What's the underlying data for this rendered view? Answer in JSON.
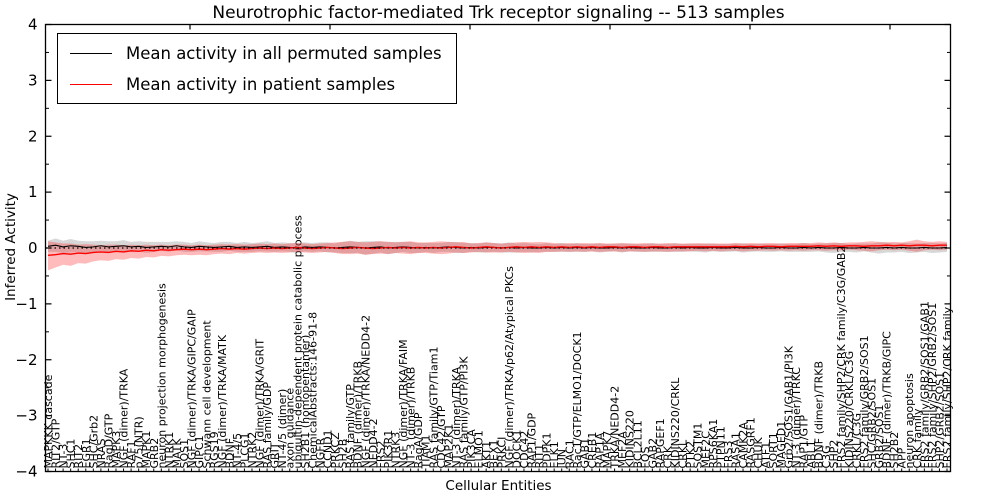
{
  "title": "Neurotrophic factor-mediated Trk receptor signaling -- 513 samples",
  "axes": {
    "x_label": "Cellular Entities",
    "y_label": "Inferred Activity",
    "ylim": [
      -4,
      4
    ],
    "y_ticks": [
      {
        "label": "4",
        "v": 4
      },
      {
        "label": "3",
        "v": 3
      },
      {
        "label": "2",
        "v": 2
      },
      {
        "label": "1",
        "v": 1
      },
      {
        "label": "0",
        "v": 0
      },
      {
        "label": "−1",
        "v": -1
      },
      {
        "label": "−2",
        "v": -2
      },
      {
        "label": "−3",
        "v": -3
      },
      {
        "label": "−4",
        "v": -4
      }
    ],
    "y_minor_step": 0.5
  },
  "colors": {
    "permuted_line": "#000000",
    "patient_line": "#ff0000",
    "permuted_band": "rgba(110,110,110,0.28)",
    "patient_band": "rgba(255,30,30,0.30)",
    "zero_line": "#000000",
    "frame": "#000000"
  },
  "chart_data": {
    "type": "line",
    "title": "Neurotrophic factor-mediated Trk receptor signaling -- 513 samples",
    "xlabel": "Cellular Entities",
    "ylabel": "Inferred Activity",
    "ylim": [
      -4,
      4
    ],
    "grid": false,
    "legend_position": "upper left",
    "zero_reference_line": 0,
    "categories": [
      "MAPKKK cascade",
      "RIT2/GTP",
      "NT-3",
      "SHC1",
      "RIT2",
      "EGR1",
      "SHC/Grb2",
      "NRAS",
      "RagD/GTP",
      "MAPK3",
      "NGF (dimer)/TRKA",
      "RAF1",
      "p75(NTR)",
      "MAPK1",
      "GRB2",
      "neuron projection morphogenesis",
      "NTRK1",
      "MATK",
      "SOS1",
      "NGF (dimer)/TRKA/GIPC/GAIP",
      "GIPC1",
      "Schwann cell development",
      "RGS19",
      "NGF (dimer)/TRKA/MATK",
      "BDNF",
      "NT-4/5",
      "PLCG1",
      "NTRK2",
      "NGF (dimer)/TRKA/GRIT",
      "RAS family/GDP",
      "GRIT",
      "NT-4/5 (dimer)",
      "axon guidance",
      "ubiquitin-dependent protein catabolic process",
      "SH2B1 (homopentamer)",
      "ChemicalAbstracts:146-91-8",
      "NGFR",
      "CCND1",
      "PRKCZ",
      "SH2B",
      "RAS family/GTP",
      "BDNF (dimer)/TRKB",
      "NGF (dimer)/TRKA/NEDD4-2",
      "NEDD4-2",
      "FRS2",
      "PIK3R1",
      "NTRK3",
      "NGF (dimer)/TRKA/FAIM",
      "NT-3 (dimer)/TRKB",
      "RagA/GDP",
      "TIAM1",
      "RAS family/GTP/Tiam1",
      "CDC42/GTP",
      "MAP2K1",
      "NT-3 (dimer)/TRKA",
      "RAS family/GTP/PI3K",
      "PIK3CA",
      "ELMO1",
      "AKT1",
      "BEX1",
      "PRKCI",
      "NGF (dimer)/TRKA/p62/Atypical PKCs",
      "DOCK1",
      "CDC42",
      "RAP1/GDP",
      "RIT1",
      "PDPK1",
      "ELK1",
      "JUN",
      "RAC1",
      "Rac1/GTP/ELMO1/DOCK1",
      "GAB1",
      "CREB1",
      "RAP1A",
      "MAPK7",
      "TRKA/NEDD4-2",
      "MEF2A",
      "KIDINS220",
      "BCL2L11",
      "FOS",
      "GAB2",
      "RAPGEF1",
      "CRK",
      "KIDINS220/CRKL",
      "CRKL",
      "PTK2",
      "SQSTM1",
      "MEF2C",
      "RPS6KA1",
      "PTPN11",
      "FRS3",
      "RASA1",
      "CAMK2A",
      "RASGRF1",
      "CHUK",
      "ATF1",
      "SORT1",
      "MAGED1",
      "Grb2/SOS1/GAB1/PI3K",
      "NT-3 (dimer)/TRKC",
      "RAP1/GTP",
      "ABL1",
      "BDNF (dimer)/TRKB",
      "C3G",
      "SHP2",
      "FRS2 family/SHP2/CRK family/C3G/GAB2",
      "KIDINS220/CRKL/C3G",
      "CRKL/C3G",
      "FRS2 family/GRB2/SOS1",
      "SHC/GRB2/SOS1",
      "GRB2/SOS1",
      "BDNF (dimer)/TRKB/GIPC",
      "SH2B2",
      "APP",
      "neuron apoptosis",
      "CRK family",
      "FRS2 family/GRB2/SOS1/GAB1",
      "FRS2 family/SHP2/GRB2/SOS1",
      "SHP2/GRB2/SOS1",
      "FRS2 family/SHP2/CRK family"
    ],
    "series": [
      {
        "name": "Mean activity in all permuted samples",
        "color": "#000000",
        "values": [
          0.03,
          0.05,
          0.02,
          0.04,
          0.03,
          0.01,
          0.02,
          0.04,
          0.02,
          0.03,
          0.04,
          0.02,
          0.03,
          0.01,
          0.02,
          0.03,
          0.02,
          0.04,
          0.02,
          0.01,
          0.03,
          0.02,
          0.01,
          0.02,
          0.03,
          0.01,
          0.02,
          0.01,
          0.02,
          0.03,
          0.01,
          0.02,
          0.01,
          0.0,
          0.02,
          0.01,
          0.02,
          0.01,
          0.0,
          0.01,
          0.02,
          0.01,
          0.0,
          0.01,
          0.02,
          0.0,
          0.01,
          0.02,
          0.01,
          0.0,
          0.01,
          0.0,
          0.01,
          0.02,
          0.01,
          0.0,
          0.01,
          0.0,
          0.01,
          0.01,
          0.0,
          0.01,
          0.0,
          0.01,
          0.0,
          0.0,
          0.01,
          0.0,
          0.01,
          0.0,
          0.01,
          0.0,
          0.01,
          0.0,
          0.0,
          0.01,
          0.0,
          0.01,
          0.0,
          0.0,
          0.01,
          0.0,
          0.0,
          0.01,
          0.0,
          0.01,
          0.0,
          0.0,
          0.01,
          0.0,
          0.0,
          0.01,
          0.0,
          0.0,
          0.01,
          0.0,
          0.0,
          0.01,
          0.0,
          0.0,
          0.01,
          0.0,
          0.01,
          0.0,
          0.0,
          0.01,
          0.0,
          0.0,
          0.01,
          0.0,
          0.0,
          0.01,
          0.0,
          0.01,
          0.0,
          0.0,
          0.01,
          0.0,
          0.0,
          0.01
        ],
        "band_halfwidth": [
          0.1,
          0.12,
          0.11,
          0.12,
          0.1,
          0.11,
          0.1,
          0.09,
          0.1,
          0.09,
          0.1,
          0.09,
          0.09,
          0.1,
          0.09,
          0.08,
          0.09,
          0.08,
          0.09,
          0.08,
          0.09,
          0.08,
          0.08,
          0.09,
          0.08,
          0.08,
          0.09,
          0.08,
          0.08,
          0.09,
          0.08,
          0.08,
          0.08,
          0.09,
          0.08,
          0.08,
          0.08,
          0.09,
          0.08,
          0.1,
          0.11,
          0.1,
          0.12,
          0.11,
          0.1,
          0.11,
          0.1,
          0.09,
          0.1,
          0.09,
          0.08,
          0.09,
          0.08,
          0.09,
          0.1,
          0.09,
          0.08,
          0.08,
          0.09,
          0.08,
          0.08,
          0.09,
          0.08,
          0.08,
          0.08,
          0.07,
          0.08,
          0.07,
          0.08,
          0.07,
          0.08,
          0.07,
          0.07,
          0.08,
          0.07,
          0.07,
          0.08,
          0.07,
          0.07,
          0.07,
          0.08,
          0.07,
          0.07,
          0.08,
          0.07,
          0.07,
          0.07,
          0.08,
          0.07,
          0.07,
          0.07,
          0.07,
          0.08,
          0.07,
          0.07,
          0.07,
          0.07,
          0.07,
          0.07,
          0.07,
          0.08,
          0.07,
          0.07,
          0.08,
          0.09,
          0.08,
          0.07,
          0.08,
          0.07,
          0.08,
          0.1,
          0.09,
          0.08,
          0.08,
          0.09,
          0.08,
          0.08,
          0.09,
          0.08,
          0.08
        ]
      },
      {
        "name": "Mean activity in patient samples",
        "color": "#ff0000",
        "values": [
          -0.13,
          -0.12,
          -0.1,
          -0.11,
          -0.09,
          -0.1,
          -0.08,
          -0.07,
          -0.08,
          -0.06,
          -0.07,
          -0.05,
          -0.06,
          -0.04,
          -0.05,
          -0.03,
          -0.04,
          -0.03,
          -0.02,
          -0.03,
          -0.02,
          -0.03,
          -0.02,
          -0.01,
          -0.02,
          -0.01,
          -0.02,
          -0.01,
          0.0,
          -0.01,
          0.0,
          -0.01,
          0.0,
          0.01,
          0.0,
          -0.01,
          0.0,
          0.01,
          0.0,
          -0.01,
          0.0,
          0.01,
          0.0,
          -0.01,
          0.0,
          0.01,
          0.0,
          0.01,
          0.0,
          0.01,
          0.0,
          0.01,
          0.0,
          0.01,
          0.02,
          0.01,
          0.0,
          0.01,
          0.02,
          0.01,
          0.0,
          0.01,
          0.02,
          0.01,
          0.02,
          0.01,
          0.02,
          0.01,
          0.02,
          0.01,
          0.02,
          0.01,
          0.02,
          0.01,
          0.02,
          0.02,
          0.01,
          0.02,
          0.02,
          0.01,
          0.02,
          0.02,
          0.01,
          0.02,
          0.02,
          0.02,
          0.02,
          0.02,
          0.02,
          0.02,
          0.02,
          0.03,
          0.02,
          0.03,
          0.02,
          0.03,
          0.03,
          0.02,
          0.03,
          0.03,
          0.03,
          0.03,
          0.04,
          0.03,
          0.04,
          0.03,
          0.04,
          0.04,
          0.03,
          0.04,
          0.04,
          0.05,
          0.04,
          0.05,
          0.04,
          0.05,
          0.05,
          0.04,
          0.05,
          0.05
        ],
        "band_upper": [
          0.12,
          0.1,
          0.08,
          0.08,
          0.06,
          0.07,
          0.06,
          0.05,
          0.06,
          0.06,
          0.05,
          0.06,
          0.05,
          0.06,
          0.05,
          0.06,
          0.05,
          0.06,
          0.06,
          0.05,
          0.06,
          0.05,
          0.06,
          0.07,
          0.06,
          0.07,
          0.06,
          0.07,
          0.08,
          0.07,
          0.08,
          0.07,
          0.08,
          0.09,
          0.08,
          0.07,
          0.08,
          0.09,
          0.1,
          0.11,
          0.12,
          0.11,
          0.1,
          0.11,
          0.12,
          0.11,
          0.1,
          0.11,
          0.12,
          0.1,
          0.1,
          0.11,
          0.12,
          0.11,
          0.1,
          0.11,
          0.08,
          0.09,
          0.1,
          0.09,
          0.08,
          0.09,
          0.1,
          0.11,
          0.1,
          0.11,
          0.1,
          0.09,
          0.08,
          0.09,
          0.08,
          0.09,
          0.08,
          0.09,
          0.08,
          0.08,
          0.09,
          0.08,
          0.08,
          0.09,
          0.08,
          0.08,
          0.09,
          0.08,
          0.08,
          0.08,
          0.09,
          0.08,
          0.08,
          0.08,
          0.08,
          0.09,
          0.08,
          0.09,
          0.08,
          0.09,
          0.09,
          0.08,
          0.09,
          0.09,
          0.09,
          0.09,
          0.1,
          0.09,
          0.1,
          0.09,
          0.1,
          0.1,
          0.11,
          0.12,
          0.11,
          0.1,
          0.11,
          0.1,
          0.12,
          0.15,
          0.12,
          0.11,
          0.12,
          0.11
        ],
        "band_lower": [
          -0.4,
          -0.35,
          -0.3,
          -0.32,
          -0.27,
          -0.28,
          -0.24,
          -0.22,
          -0.23,
          -0.2,
          -0.21,
          -0.18,
          -0.19,
          -0.16,
          -0.17,
          -0.14,
          -0.15,
          -0.13,
          -0.12,
          -0.13,
          -0.12,
          -0.13,
          -0.11,
          -0.1,
          -0.11,
          -0.09,
          -0.1,
          -0.09,
          -0.08,
          -0.09,
          -0.08,
          -0.09,
          -0.08,
          -0.07,
          -0.08,
          -0.09,
          -0.08,
          -0.07,
          -0.09,
          -0.11,
          -0.11,
          -0.1,
          -0.12,
          -0.11,
          -0.1,
          -0.11,
          -0.09,
          -0.1,
          -0.11,
          -0.09,
          -0.09,
          -0.1,
          -0.11,
          -0.1,
          -0.08,
          -0.09,
          -0.08,
          -0.07,
          -0.08,
          -0.08,
          -0.08,
          -0.07,
          -0.08,
          -0.09,
          -0.08,
          -0.09,
          -0.07,
          -0.07,
          -0.06,
          -0.07,
          -0.06,
          -0.07,
          -0.06,
          -0.07,
          -0.06,
          -0.06,
          -0.07,
          -0.06,
          -0.06,
          -0.07,
          -0.06,
          -0.06,
          -0.07,
          -0.06,
          -0.06,
          -0.06,
          -0.05,
          -0.06,
          -0.05,
          -0.06,
          -0.05,
          -0.05,
          -0.06,
          -0.05,
          -0.05,
          -0.04,
          -0.05,
          -0.04,
          -0.05,
          -0.04,
          -0.05,
          -0.04,
          -0.04,
          -0.05,
          -0.04,
          -0.04,
          -0.03,
          -0.04,
          -0.05,
          -0.06,
          -0.04,
          -0.03,
          -0.04,
          -0.03,
          -0.05,
          -0.07,
          -0.04,
          -0.03,
          -0.04,
          -0.03
        ]
      }
    ]
  }
}
